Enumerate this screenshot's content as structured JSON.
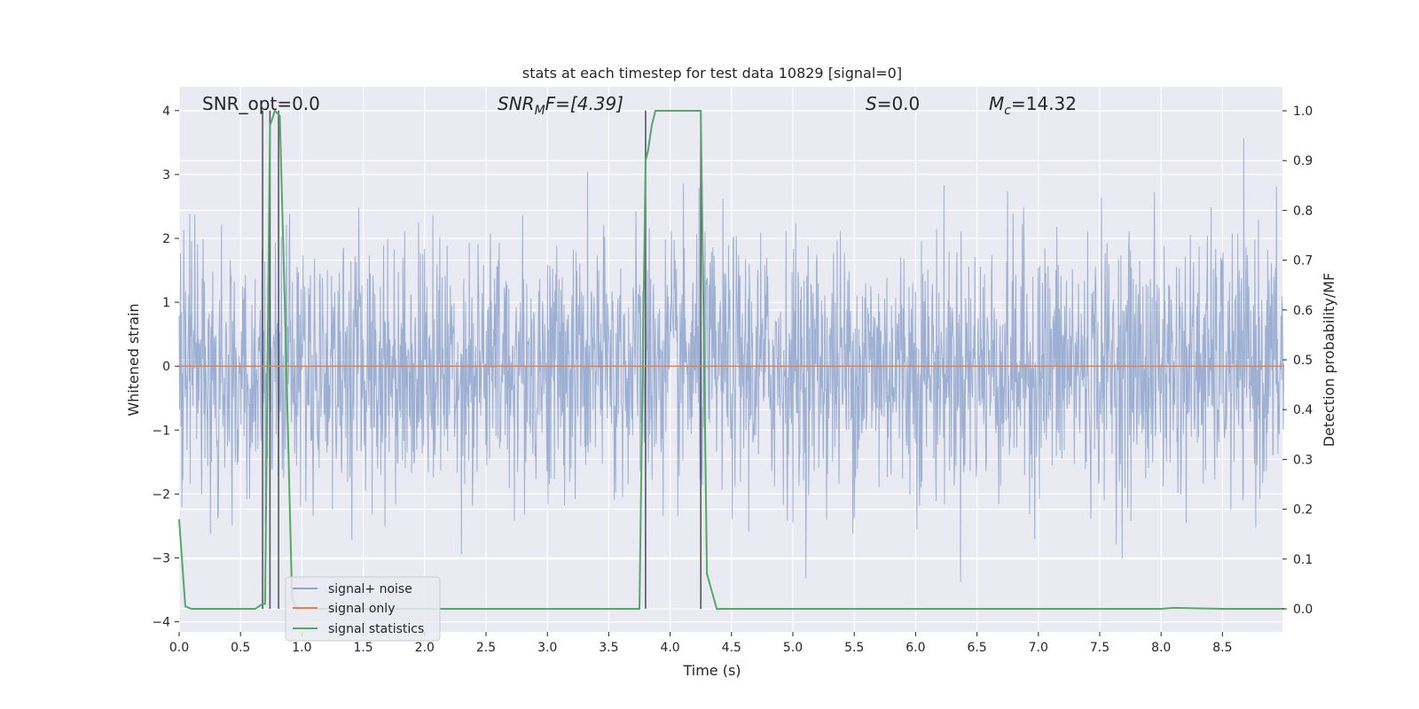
{
  "chart_data": {
    "type": "line",
    "title": "stats at each timestep for test data 10829 [signal=0]",
    "xlabel": "Time (s)",
    "ylabel": "Whitened strain",
    "y2label": "Detection probability/MF",
    "xlim": [
      0.0,
      9.0
    ],
    "ylim": [
      -4.4,
      4.4
    ],
    "y2lim": [
      -0.05,
      1.05
    ],
    "x_ticks": [
      "0.0",
      "0.5",
      "1.0",
      "1.5",
      "2.0",
      "2.5",
      "3.0",
      "3.5",
      "4.0",
      "4.5",
      "5.0",
      "5.5",
      "6.0",
      "6.5",
      "7.0",
      "7.5",
      "8.0",
      "8.5"
    ],
    "y_ticks": [
      "4",
      "3",
      "2",
      "1",
      "0",
      "−1",
      "−2",
      "−3",
      "−4"
    ],
    "y2_ticks": [
      "1.0",
      "0.9",
      "0.8",
      "0.7",
      "0.6",
      "0.5",
      "0.4",
      "0.3",
      "0.2",
      "0.1",
      "0.0"
    ],
    "grid": true,
    "legend_position": "lower-left",
    "annotations": {
      "snr_opt": "SNR_opt=0.0",
      "snr_mf_main": "SNR",
      "snr_mf_sub": "M",
      "snr_mf_rest": "F=[4.39]",
      "s_main": "S",
      "s_rest": "=0.0",
      "mc_main": "M",
      "mc_sub": "c",
      "mc_rest": "=14.32"
    },
    "series": [
      {
        "name": "signal+ noise",
        "color": "#8fa5cc",
        "description_values": "whitened strain noise, amplitude roughly within ±2.5 with peaks to ±4",
        "envelope": {
          "typical_abs": 2.2,
          "max_abs": 4.0
        }
      },
      {
        "name": "signal only",
        "color": "#dd8452",
        "x": [
          0.0,
          9.0
        ],
        "y": [
          0.0,
          0.0
        ]
      },
      {
        "name": "signal statistics",
        "color": "#55a868",
        "axis": "right",
        "x": [
          0.0,
          0.05,
          0.1,
          0.15,
          0.3,
          0.5,
          0.62,
          0.68,
          0.7,
          0.74,
          0.78,
          0.82,
          0.86,
          0.92,
          0.96,
          1.0,
          1.5,
          2.0,
          2.5,
          3.0,
          3.5,
          3.75,
          3.8,
          3.82,
          3.85,
          3.88,
          4.0,
          4.1,
          4.2,
          4.25,
          4.3,
          4.38,
          4.5,
          5.0,
          6.0,
          7.0,
          8.0,
          8.1,
          8.5,
          9.0
        ],
        "y": [
          0.18,
          0.005,
          0.0,
          0.0,
          0.0,
          0.0,
          0.0,
          0.01,
          0.01,
          0.97,
          1.0,
          0.99,
          0.62,
          0.02,
          0.0,
          0.0,
          0.0,
          0.0,
          0.0,
          0.0,
          0.0,
          0.0,
          0.9,
          0.92,
          0.97,
          1.0,
          1.0,
          1.0,
          1.0,
          1.0,
          0.07,
          0.0,
          0.0,
          0.0,
          0.0,
          0.0,
          0.0,
          0.002,
          0.0,
          0.0
        ]
      }
    ],
    "vlines": [
      0.68,
      0.74,
      0.81,
      3.8,
      4.25
    ],
    "vline_color": "#555566"
  }
}
